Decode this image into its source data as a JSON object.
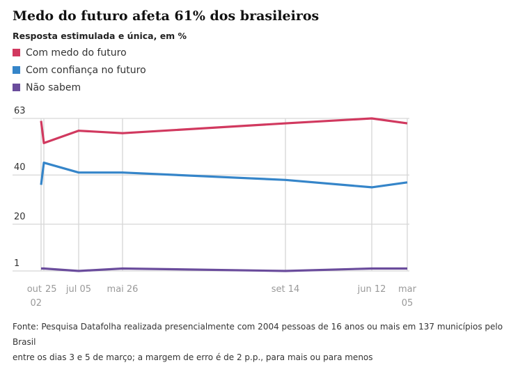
{
  "title": "Medo do futuro afeta 61% dos brasileiros",
  "subtitle": "Resposta estimulada e única, em %",
  "footer_lines": [
    "Fonte: Pesquisa Datafolha realizada presencialmente com 2004 pessoas de 16 anos ou mais em 137 municípios pelo Brasil",
    "entre os dias 3 e 5 de março; a margem de erro é de 2 p.p., para mais ou para menos"
  ],
  "chart_data": {
    "type": "line",
    "title": "Medo do futuro afeta 61% dos brasileiros",
    "x": [
      "out 02",
      "25",
      "jul 05",
      "mai 26",
      "set 14",
      "jun 12",
      "mar 05"
    ],
    "y_ticks": [
      1,
      20,
      40,
      63
    ],
    "ylim": [
      1,
      63
    ],
    "grid": true,
    "legend_position": "top-left",
    "series": [
      {
        "name": "Com medo do futuro",
        "color": "#d1395f",
        "values": [
          62,
          53,
          58,
          57,
          61,
          63,
          61
        ]
      },
      {
        "name": "Com confiança no futuro",
        "color": "#3585c9",
        "values": [
          36,
          45,
          41,
          41,
          38,
          35,
          37
        ]
      },
      {
        "name": "Não sabem",
        "color": "#6a4c9c",
        "values": [
          2,
          2,
          1,
          2,
          1,
          2,
          2
        ]
      }
    ]
  }
}
